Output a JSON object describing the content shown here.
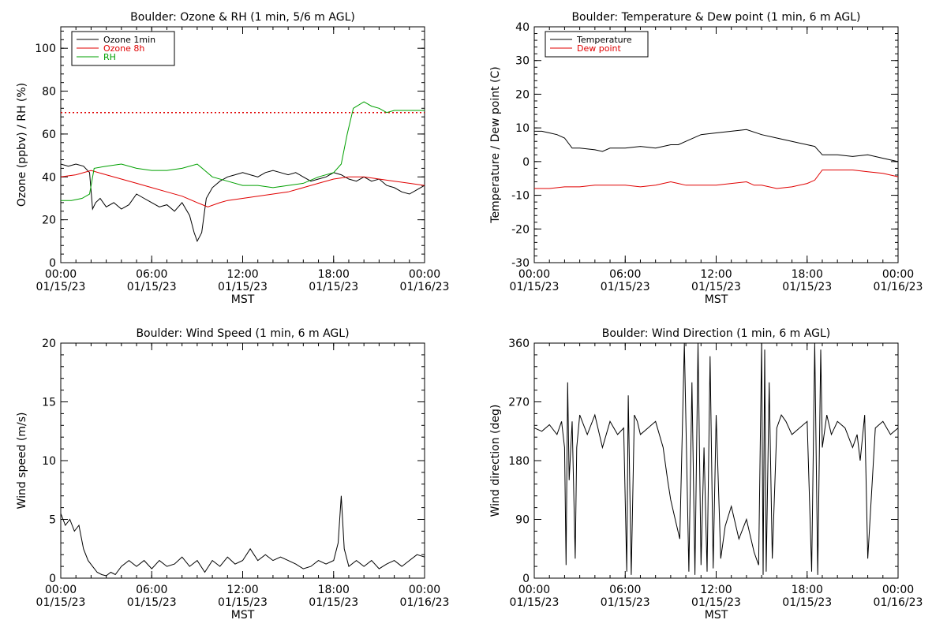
{
  "chart_data": [
    {
      "type": "line",
      "title": "Boulder: Ozone & RH (1 min, 5/6 m AGL)",
      "xlabel": "MST",
      "ylabel": "Ozone (ppbv) / RH (%)",
      "ylim": [
        0,
        110
      ],
      "xlim": [
        0,
        24
      ],
      "x_ticks": [
        {
          "value": 0,
          "time": "00:00",
          "date": "01/15/23"
        },
        {
          "value": 6,
          "time": "06:00",
          "date": "01/15/23"
        },
        {
          "value": 12,
          "time": "12:00",
          "date": "01/15/23"
        },
        {
          "value": 18,
          "time": "18:00",
          "date": "01/15/23"
        },
        {
          "value": 24,
          "time": "00:00",
          "date": "01/16/23"
        }
      ],
      "y_ticks": [
        0,
        20,
        40,
        60,
        80,
        100
      ],
      "legend_position": "top-left",
      "reference_lines": [
        {
          "y": 70,
          "color": "#e00000",
          "style": "dotted"
        }
      ],
      "series": [
        {
          "name": "Ozone 1min",
          "color": "#000000",
          "x": [
            0,
            0.5,
            1,
            1.5,
            1.9,
            2.1,
            2.3,
            2.6,
            3,
            3.5,
            4,
            4.5,
            5,
            5.5,
            6,
            6.5,
            7,
            7.5,
            8,
            8.5,
            8.8,
            9.0,
            9.3,
            9.6,
            10,
            10.5,
            11,
            11.5,
            12,
            12.5,
            13,
            13.5,
            14,
            14.5,
            15,
            15.5,
            16,
            16.5,
            17,
            17.5,
            18,
            18.5,
            19,
            19.5,
            20,
            20.5,
            21,
            21.5,
            22,
            22.5,
            23,
            23.5,
            24
          ],
          "y": [
            46,
            45,
            46,
            45,
            42,
            25,
            28,
            30,
            26,
            28,
            25,
            27,
            32,
            30,
            28,
            26,
            27,
            24,
            28,
            22,
            14,
            10,
            14,
            30,
            35,
            38,
            40,
            41,
            42,
            41,
            40,
            42,
            43,
            42,
            41,
            42,
            40,
            38,
            39,
            40,
            42,
            41,
            39,
            38,
            40,
            38,
            39,
            36,
            35,
            33,
            32,
            34,
            36
          ]
        },
        {
          "name": "Ozone 8h",
          "color": "#e00000",
          "x": [
            0,
            1,
            2,
            3,
            4,
            5,
            6,
            7,
            8,
            9,
            9.7,
            10.5,
            11,
            12,
            13,
            14,
            15,
            16,
            17,
            18,
            19,
            20,
            21,
            22,
            23,
            24
          ],
          "y": [
            40,
            41,
            43,
            41,
            39,
            37,
            35,
            33,
            31,
            28,
            26,
            28,
            29,
            30,
            31,
            32,
            33,
            35,
            37,
            39,
            40,
            40,
            39,
            38,
            37,
            36
          ]
        },
        {
          "name": "RH",
          "color": "#00a000",
          "x": [
            0,
            0.7,
            1.4,
            1.9,
            2.2,
            3,
            4,
            5,
            6,
            7,
            8,
            9,
            9.5,
            10,
            11,
            12,
            13,
            14,
            15,
            16,
            17,
            18,
            18.5,
            18.9,
            19.3,
            20,
            20.5,
            21,
            21.5,
            22,
            23,
            24
          ],
          "y": [
            29,
            29,
            30,
            32,
            44,
            45,
            46,
            44,
            43,
            43,
            44,
            46,
            43,
            40,
            38,
            36,
            36,
            35,
            36,
            37,
            40,
            42,
            46,
            60,
            72,
            75,
            73,
            72,
            70,
            71,
            71,
            71
          ]
        }
      ]
    },
    {
      "type": "line",
      "title": "Boulder: Temperature & Dew point (1 min, 6 m AGL)",
      "xlabel": "MST",
      "ylabel": "Temperature / Dew point (C)",
      "ylim": [
        -30,
        40
      ],
      "xlim": [
        0,
        24
      ],
      "x_ticks": [
        {
          "value": 0,
          "time": "00:00",
          "date": "01/15/23"
        },
        {
          "value": 6,
          "time": "06:00",
          "date": "01/15/23"
        },
        {
          "value": 12,
          "time": "12:00",
          "date": "01/15/23"
        },
        {
          "value": 18,
          "time": "18:00",
          "date": "01/15/23"
        },
        {
          "value": 24,
          "time": "00:00",
          "date": "01/16/23"
        }
      ],
      "y_ticks": [
        -30,
        -20,
        -10,
        0,
        10,
        20,
        30,
        40
      ],
      "legend_position": "top-left",
      "series": [
        {
          "name": "Temperature",
          "color": "#000000",
          "x": [
            0,
            0.5,
            1,
            1.5,
            2,
            2.5,
            3,
            4,
            4.5,
            5,
            6,
            7,
            8,
            9,
            9.5,
            10,
            11,
            12,
            13,
            14,
            15,
            16,
            17,
            18,
            18.5,
            19,
            20,
            21,
            22,
            23,
            24
          ],
          "y": [
            9,
            9,
            8.5,
            8,
            7,
            4,
            4,
            3.5,
            3,
            4,
            4,
            4.5,
            4,
            5,
            5,
            6,
            8,
            8.5,
            9,
            9.5,
            8,
            7,
            6,
            5,
            4.5,
            2,
            2,
            1.5,
            2,
            1,
            0
          ]
        },
        {
          "name": "Dew point",
          "color": "#e00000",
          "x": [
            0,
            1,
            2,
            3,
            4,
            5,
            6,
            7,
            8,
            9,
            9.5,
            10,
            11,
            12,
            13,
            14,
            14.5,
            15,
            16,
            17,
            18,
            18.5,
            19,
            20,
            21,
            22,
            23,
            24
          ],
          "y": [
            -8,
            -8,
            -7.5,
            -7.5,
            -7,
            -7,
            -7,
            -7.5,
            -7,
            -6,
            -6.5,
            -7,
            -7,
            -7,
            -6.5,
            -6,
            -7,
            -7,
            -8,
            -7.5,
            -6.5,
            -5.5,
            -2.5,
            -2.5,
            -2.5,
            -3,
            -3.5,
            -4.5
          ]
        }
      ]
    },
    {
      "type": "line",
      "title": "Boulder: Wind Speed (1 min, 6 m AGL)",
      "xlabel": "MST",
      "ylabel": "Wind speed (m/s)",
      "ylim": [
        0,
        20
      ],
      "xlim": [
        0,
        24
      ],
      "x_ticks": [
        {
          "value": 0,
          "time": "00:00",
          "date": "01/15/23"
        },
        {
          "value": 6,
          "time": "06:00",
          "date": "01/15/23"
        },
        {
          "value": 12,
          "time": "12:00",
          "date": "01/15/23"
        },
        {
          "value": 18,
          "time": "18:00",
          "date": "01/15/23"
        },
        {
          "value": 24,
          "time": "00:00",
          "date": "01/16/23"
        }
      ],
      "y_ticks": [
        0,
        5,
        10,
        15,
        20
      ],
      "series": [
        {
          "name": "",
          "color": "#000000",
          "x": [
            0,
            0.3,
            0.6,
            0.9,
            1.2,
            1.5,
            1.8,
            2.1,
            2.4,
            2.7,
            3.0,
            3.3,
            3.6,
            4,
            4.5,
            5,
            5.5,
            6,
            6.5,
            7,
            7.5,
            8,
            8.5,
            9,
            9.5,
            10,
            10.5,
            11,
            11.5,
            12,
            12.5,
            13,
            13.5,
            14,
            14.5,
            15,
            15.5,
            16,
            16.5,
            17,
            17.5,
            18,
            18.3,
            18.5,
            18.7,
            19,
            19.5,
            20,
            20.5,
            21,
            21.5,
            22,
            22.5,
            23,
            23.5,
            24
          ],
          "y": [
            5.5,
            4.5,
            5,
            4,
            4.5,
            2.5,
            1.5,
            1,
            0.5,
            0.3,
            0.2,
            0.5,
            0.3,
            1,
            1.5,
            1,
            1.5,
            0.8,
            1.5,
            1,
            1.2,
            1.8,
            1,
            1.5,
            0.5,
            1.5,
            1,
            1.8,
            1.2,
            1.5,
            2.5,
            1.5,
            2,
            1.5,
            1.8,
            1.5,
            1.2,
            0.8,
            1,
            1.5,
            1.2,
            1.5,
            3,
            7,
            2.5,
            1,
            1.5,
            1,
            1.5,
            0.8,
            1.2,
            1.5,
            1,
            1.5,
            2,
            1.8
          ]
        }
      ]
    },
    {
      "type": "line",
      "title": "Boulder: Wind Direction (1 min, 6 m AGL)",
      "xlabel": "MST",
      "ylabel": "Wind direction (deg)",
      "ylim": [
        0,
        360
      ],
      "xlim": [
        0,
        24
      ],
      "x_ticks": [
        {
          "value": 0,
          "time": "00:00",
          "date": "01/15/23"
        },
        {
          "value": 6,
          "time": "06:00",
          "date": "01/15/23"
        },
        {
          "value": 12,
          "time": "12:00",
          "date": "01/15/23"
        },
        {
          "value": 18,
          "time": "18:00",
          "date": "01/15/23"
        },
        {
          "value": 24,
          "time": "00:00",
          "date": "01/16/23"
        }
      ],
      "y_ticks": [
        0,
        90,
        180,
        270,
        360
      ],
      "series": [
        {
          "name": "",
          "color": "#000000",
          "x": [
            0,
            0.5,
            1,
            1.5,
            1.8,
            2.0,
            2.1,
            2.2,
            2.3,
            2.5,
            2.7,
            2.8,
            3,
            3.5,
            4,
            4.5,
            5,
            5.5,
            5.9,
            6.1,
            6.2,
            6.4,
            6.6,
            6.8,
            7,
            7.5,
            8,
            8.5,
            8.8,
            9,
            9.3,
            9.6,
            9.9,
            10.2,
            10.4,
            10.6,
            10.8,
            11,
            11.2,
            11.4,
            11.6,
            11.8,
            12,
            12.3,
            12.6,
            13,
            13.5,
            14,
            14.5,
            14.8,
            15,
            15.1,
            15.2,
            15.3,
            15.5,
            15.7,
            16,
            16.3,
            16.6,
            17,
            17.5,
            18,
            18.3,
            18.5,
            18.7,
            18.9,
            19,
            19.3,
            19.6,
            20,
            20.5,
            21,
            21.3,
            21.5,
            21.8,
            22,
            22.5,
            23,
            23.5,
            24
          ],
          "y": [
            230,
            225,
            235,
            220,
            240,
            200,
            20,
            300,
            150,
            240,
            30,
            200,
            250,
            220,
            250,
            200,
            240,
            220,
            230,
            10,
            280,
            5,
            250,
            240,
            220,
            230,
            240,
            200,
            150,
            120,
            90,
            60,
            360,
            10,
            300,
            5,
            360,
            20,
            200,
            10,
            340,
            15,
            250,
            30,
            80,
            110,
            60,
            90,
            40,
            20,
            360,
            5,
            350,
            10,
            300,
            30,
            230,
            250,
            240,
            220,
            230,
            240,
            10,
            360,
            5,
            350,
            200,
            250,
            220,
            240,
            230,
            200,
            220,
            180,
            250,
            30,
            230,
            240,
            220,
            230
          ]
        }
      ]
    }
  ]
}
